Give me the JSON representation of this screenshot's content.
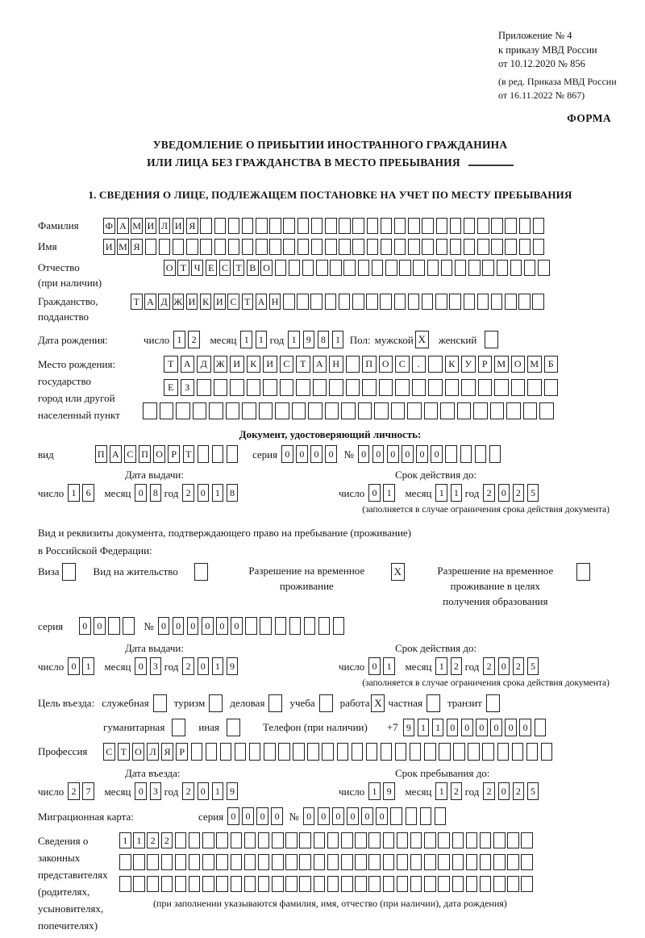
{
  "header": {
    "appendix": [
      "Приложение № 4",
      "к приказу МВД России",
      "от 10.12.2020 № 856"
    ],
    "edition": [
      "(в ред. Приказа МВД России",
      "от 16.11.2022 № 867)"
    ],
    "form_label": "ФОРМА",
    "title1": "УВЕДОМЛЕНИЕ О ПРИБЫТИИ ИНОСТРАННОГО ГРАЖДАНИНА",
    "title2": "ИЛИ ЛИЦА БЕЗ ГРАЖДАНСТВА В МЕСТО ПРЕБЫВАНИЯ",
    "section1": "1. СВЕДЕНИЯ О ЛИЦЕ, ПОДЛЕЖАЩЕМ ПОСТАНОВКЕ НА УЧЕТ ПО МЕСТУ ПРЕБЫВАНИЯ"
  },
  "date_words": {
    "day": "число",
    "month": "месяц",
    "year": "год"
  },
  "person": {
    "surname": {
      "label": "Фамилия",
      "value": "ФАМИЛИЯ",
      "cells": 32
    },
    "firstname": {
      "label": "Имя",
      "value": "ИМЯ",
      "cells": 32
    },
    "patronymic": {
      "label": [
        "Отчество",
        "(при наличии)"
      ],
      "value": "ОТЧЕСТВО",
      "cells": 28
    },
    "citizenship": {
      "label": [
        "Гражданство,",
        "подданство"
      ],
      "value": "ТАДЖИКИСТАН",
      "cells": 30
    },
    "birth_date": {
      "label": "Дата рождения:",
      "day": {
        "value": "12"
      },
      "month": {
        "value": "11"
      },
      "year": {
        "value": "1981"
      }
    },
    "sex": {
      "label": "Пол:",
      "male_label": "мужской",
      "male_checked": true,
      "female_label": "женский",
      "female_checked": false
    },
    "birth_place": {
      "label": [
        "Место рождения:",
        "государство",
        "город или другой",
        "населенный пункт"
      ],
      "row1": {
        "value": "ТАДЖИКИСТАН ПОС. КУРМОМБ",
        "cells": 24
      },
      "row2": {
        "value": "ЕЗ",
        "cells": 24
      },
      "row3": {
        "value": "",
        "cells": 25
      }
    }
  },
  "identity_doc": {
    "heading": "Документ, удостоверяющий личность:",
    "kind": {
      "label": "вид",
      "value": "ПАСПОРТ",
      "cells": 10
    },
    "series": {
      "label": "серия",
      "value": "0000",
      "cells": 4
    },
    "number": {
      "label": "№",
      "value": "000000",
      "cells": 10
    },
    "issue": {
      "title": "Дата выдачи:",
      "day": {
        "value": "16"
      },
      "month": {
        "value": "08"
      },
      "year": {
        "value": "2018"
      }
    },
    "valid": {
      "title": "Срок действия до:",
      "day": {
        "value": "01"
      },
      "month": {
        "value": "11"
      },
      "year": {
        "value": "2025"
      }
    },
    "note": "(заполняется в случае ограничения срока действия документа)"
  },
  "stay_doc": {
    "line1": "Вид и реквизиты документа, подтверждающего право на пребывание (проживание)",
    "line2": "в Российской Федерации:",
    "options": {
      "visa": {
        "label": "Виза",
        "checked": false
      },
      "residence": {
        "label": "Вид на жительство",
        "checked": false
      },
      "temp": {
        "label": [
          "Разрешение на временное",
          "проживание"
        ],
        "checked": true
      },
      "edu": {
        "label": [
          "Разрешение на временное",
          "проживание в целях",
          "получения образования"
        ],
        "checked": false
      }
    },
    "series": {
      "label": "серия",
      "value": "00",
      "cells": 4
    },
    "number": {
      "label": "№",
      "value": "000000",
      "cells": 13
    },
    "issue": {
      "title": "Дата выдачи:",
      "day": {
        "value": "01"
      },
      "month": {
        "value": "03"
      },
      "year": {
        "value": "2019"
      }
    },
    "valid": {
      "title": "Срок действия до:",
      "day": {
        "value": "01"
      },
      "month": {
        "value": "12"
      },
      "year": {
        "value": "2025"
      }
    },
    "note": "(заполняется в случае ограничения срока действия документа)"
  },
  "visit": {
    "purpose_label": "Цель въезда:",
    "opts": {
      "sluzhebnaya": {
        "label": "служебная",
        "checked": false
      },
      "turizm": {
        "label": "туризм",
        "checked": false
      },
      "delovaya": {
        "label": "деловая",
        "checked": false
      },
      "ucheba": {
        "label": "учеба",
        "checked": false
      },
      "rabota": {
        "label": "работа",
        "checked": true
      },
      "chastnaya": {
        "label": "частная",
        "checked": false
      },
      "tranzit": {
        "label": "транзит",
        "checked": false
      },
      "gumanitarnaya": {
        "label": "гуманитарная",
        "checked": false
      },
      "inaya": {
        "label": "иная",
        "checked": false
      }
    },
    "phone": {
      "label": "Телефон (при наличии)",
      "prefix": "+7",
      "value": "911000000",
      "cells": 10
    },
    "profession": {
      "label": "Профессия",
      "value": "СТОЛЯР",
      "cells": 31
    },
    "entry_date": {
      "title": "Дата въезда:",
      "day": {
        "value": "27"
      },
      "month": {
        "value": "03"
      },
      "year": {
        "value": "2019"
      }
    },
    "stay_until": {
      "title": "Срок пребывания до:",
      "day": {
        "value": "19"
      },
      "month": {
        "value": "12"
      },
      "year": {
        "value": "2025"
      }
    },
    "migration_card": {
      "label": "Миграционная карта:",
      "series": {
        "label": "серия",
        "value": "0000",
        "cells": 4
      },
      "number": {
        "label": "№",
        "value": "000000",
        "cells": 10
      }
    }
  },
  "reps": {
    "label": [
      "Сведения о",
      "законных",
      "представителях",
      "(родителях,",
      "усыновителях,",
      "попечителях)"
    ],
    "row1": {
      "value": "1122",
      "cells": 30
    },
    "row2": {
      "value": "",
      "cells": 30
    },
    "row3": {
      "value": "",
      "cells": 30
    },
    "note": "(при заполнении указываются фамилия, имя, отчество (при наличии), дата рождения)"
  }
}
